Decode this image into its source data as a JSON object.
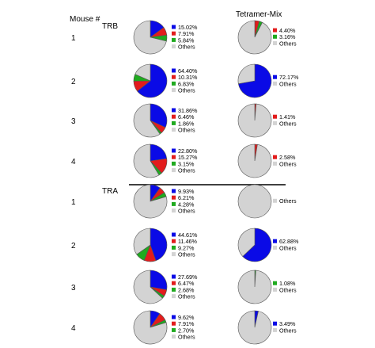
{
  "header": {
    "mouse_label": "Mouse #",
    "tetramer_label": "Tetramer-Mix"
  },
  "sections": [
    {
      "label": "TRB"
    },
    {
      "label": "TRA"
    }
  ],
  "colors": {
    "blue": "#0a0ae6",
    "red": "#e21c1c",
    "green": "#1faa1f",
    "gray": "#d3d3d3"
  },
  "chart_data": {
    "type": "pie",
    "rows": [
      {
        "section": "TRB",
        "mouse": "1",
        "left": [
          {
            "label": "15.02%",
            "value": 15.02,
            "color": "blue"
          },
          {
            "label": "7.91%",
            "value": 7.91,
            "color": "red"
          },
          {
            "label": "5.84%",
            "value": 5.84,
            "color": "green"
          },
          {
            "label": "Others",
            "value": 71.23,
            "color": "gray"
          }
        ],
        "right": [
          {
            "label": "4.40%",
            "value": 4.4,
            "color": "red"
          },
          {
            "label": "3.16%",
            "value": 3.16,
            "color": "green"
          },
          {
            "label": "Others",
            "value": 92.44,
            "color": "gray"
          }
        ]
      },
      {
        "section": "TRB",
        "mouse": "2",
        "left": [
          {
            "label": "64.40%",
            "value": 64.4,
            "color": "blue"
          },
          {
            "label": "10.31%",
            "value": 10.31,
            "color": "red"
          },
          {
            "label": "6.83%",
            "value": 6.83,
            "color": "green"
          },
          {
            "label": "Others",
            "value": 18.46,
            "color": "gray"
          }
        ],
        "right": [
          {
            "label": "72.17%",
            "value": 72.17,
            "color": "blue"
          },
          {
            "label": "Others",
            "value": 27.83,
            "color": "gray"
          }
        ]
      },
      {
        "section": "TRB",
        "mouse": "3",
        "left": [
          {
            "label": "31.86%",
            "value": 31.86,
            "color": "blue"
          },
          {
            "label": "6.46%",
            "value": 6.46,
            "color": "red"
          },
          {
            "label": "1.86%",
            "value": 1.86,
            "color": "green"
          },
          {
            "label": "Others",
            "value": 59.82,
            "color": "gray"
          }
        ],
        "right": [
          {
            "label": "1.41%",
            "value": 1.41,
            "color": "red"
          },
          {
            "label": "Others",
            "value": 98.59,
            "color": "gray"
          }
        ]
      },
      {
        "section": "TRB",
        "mouse": "4",
        "left": [
          {
            "label": "22.80%",
            "value": 22.8,
            "color": "blue"
          },
          {
            "label": "15.27%",
            "value": 15.27,
            "color": "red"
          },
          {
            "label": "3.15%",
            "value": 3.15,
            "color": "green"
          },
          {
            "label": "Others",
            "value": 58.78,
            "color": "gray"
          }
        ],
        "right": [
          {
            "label": "2.58%",
            "value": 2.58,
            "color": "red"
          },
          {
            "label": "Others",
            "value": 97.42,
            "color": "gray"
          }
        ]
      },
      {
        "section": "TRA",
        "mouse": "1",
        "left": [
          {
            "label": "9.93%",
            "value": 9.93,
            "color": "blue"
          },
          {
            "label": "6.21%",
            "value": 6.21,
            "color": "red"
          },
          {
            "label": "4.28%",
            "value": 4.28,
            "color": "green"
          },
          {
            "label": "Others",
            "value": 79.58,
            "color": "gray"
          }
        ],
        "right": [
          {
            "label": "Others",
            "value": 100,
            "color": "gray"
          }
        ]
      },
      {
        "section": "TRA",
        "mouse": "2",
        "left": [
          {
            "label": "44.61%",
            "value": 44.61,
            "color": "blue"
          },
          {
            "label": "11.46%",
            "value": 11.46,
            "color": "red"
          },
          {
            "label": "9.27%",
            "value": 9.27,
            "color": "green"
          },
          {
            "label": "Others",
            "value": 34.66,
            "color": "gray"
          }
        ],
        "right": [
          {
            "label": "62.88%",
            "value": 62.88,
            "color": "blue"
          },
          {
            "label": "Others",
            "value": 37.12,
            "color": "gray"
          }
        ]
      },
      {
        "section": "TRA",
        "mouse": "3",
        "left": [
          {
            "label": "27.69%",
            "value": 27.69,
            "color": "blue"
          },
          {
            "label": "6.47%",
            "value": 6.47,
            "color": "red"
          },
          {
            "label": "2.68%",
            "value": 2.68,
            "color": "green"
          },
          {
            "label": "Others",
            "value": 63.16,
            "color": "gray"
          }
        ],
        "right": [
          {
            "label": "1.08%",
            "value": 1.08,
            "color": "green"
          },
          {
            "label": "Others",
            "value": 98.92,
            "color": "gray"
          }
        ]
      },
      {
        "section": "TRA",
        "mouse": "4",
        "left": [
          {
            "label": "9.62%",
            "value": 9.62,
            "color": "blue"
          },
          {
            "label": "7.91%",
            "value": 7.91,
            "color": "red"
          },
          {
            "label": "2.70%",
            "value": 2.7,
            "color": "green"
          },
          {
            "label": "Others",
            "value": 79.77,
            "color": "gray"
          }
        ],
        "right": [
          {
            "label": "3.49%",
            "value": 3.49,
            "color": "blue"
          },
          {
            "label": "Others",
            "value": 96.51,
            "color": "gray"
          }
        ]
      }
    ]
  }
}
